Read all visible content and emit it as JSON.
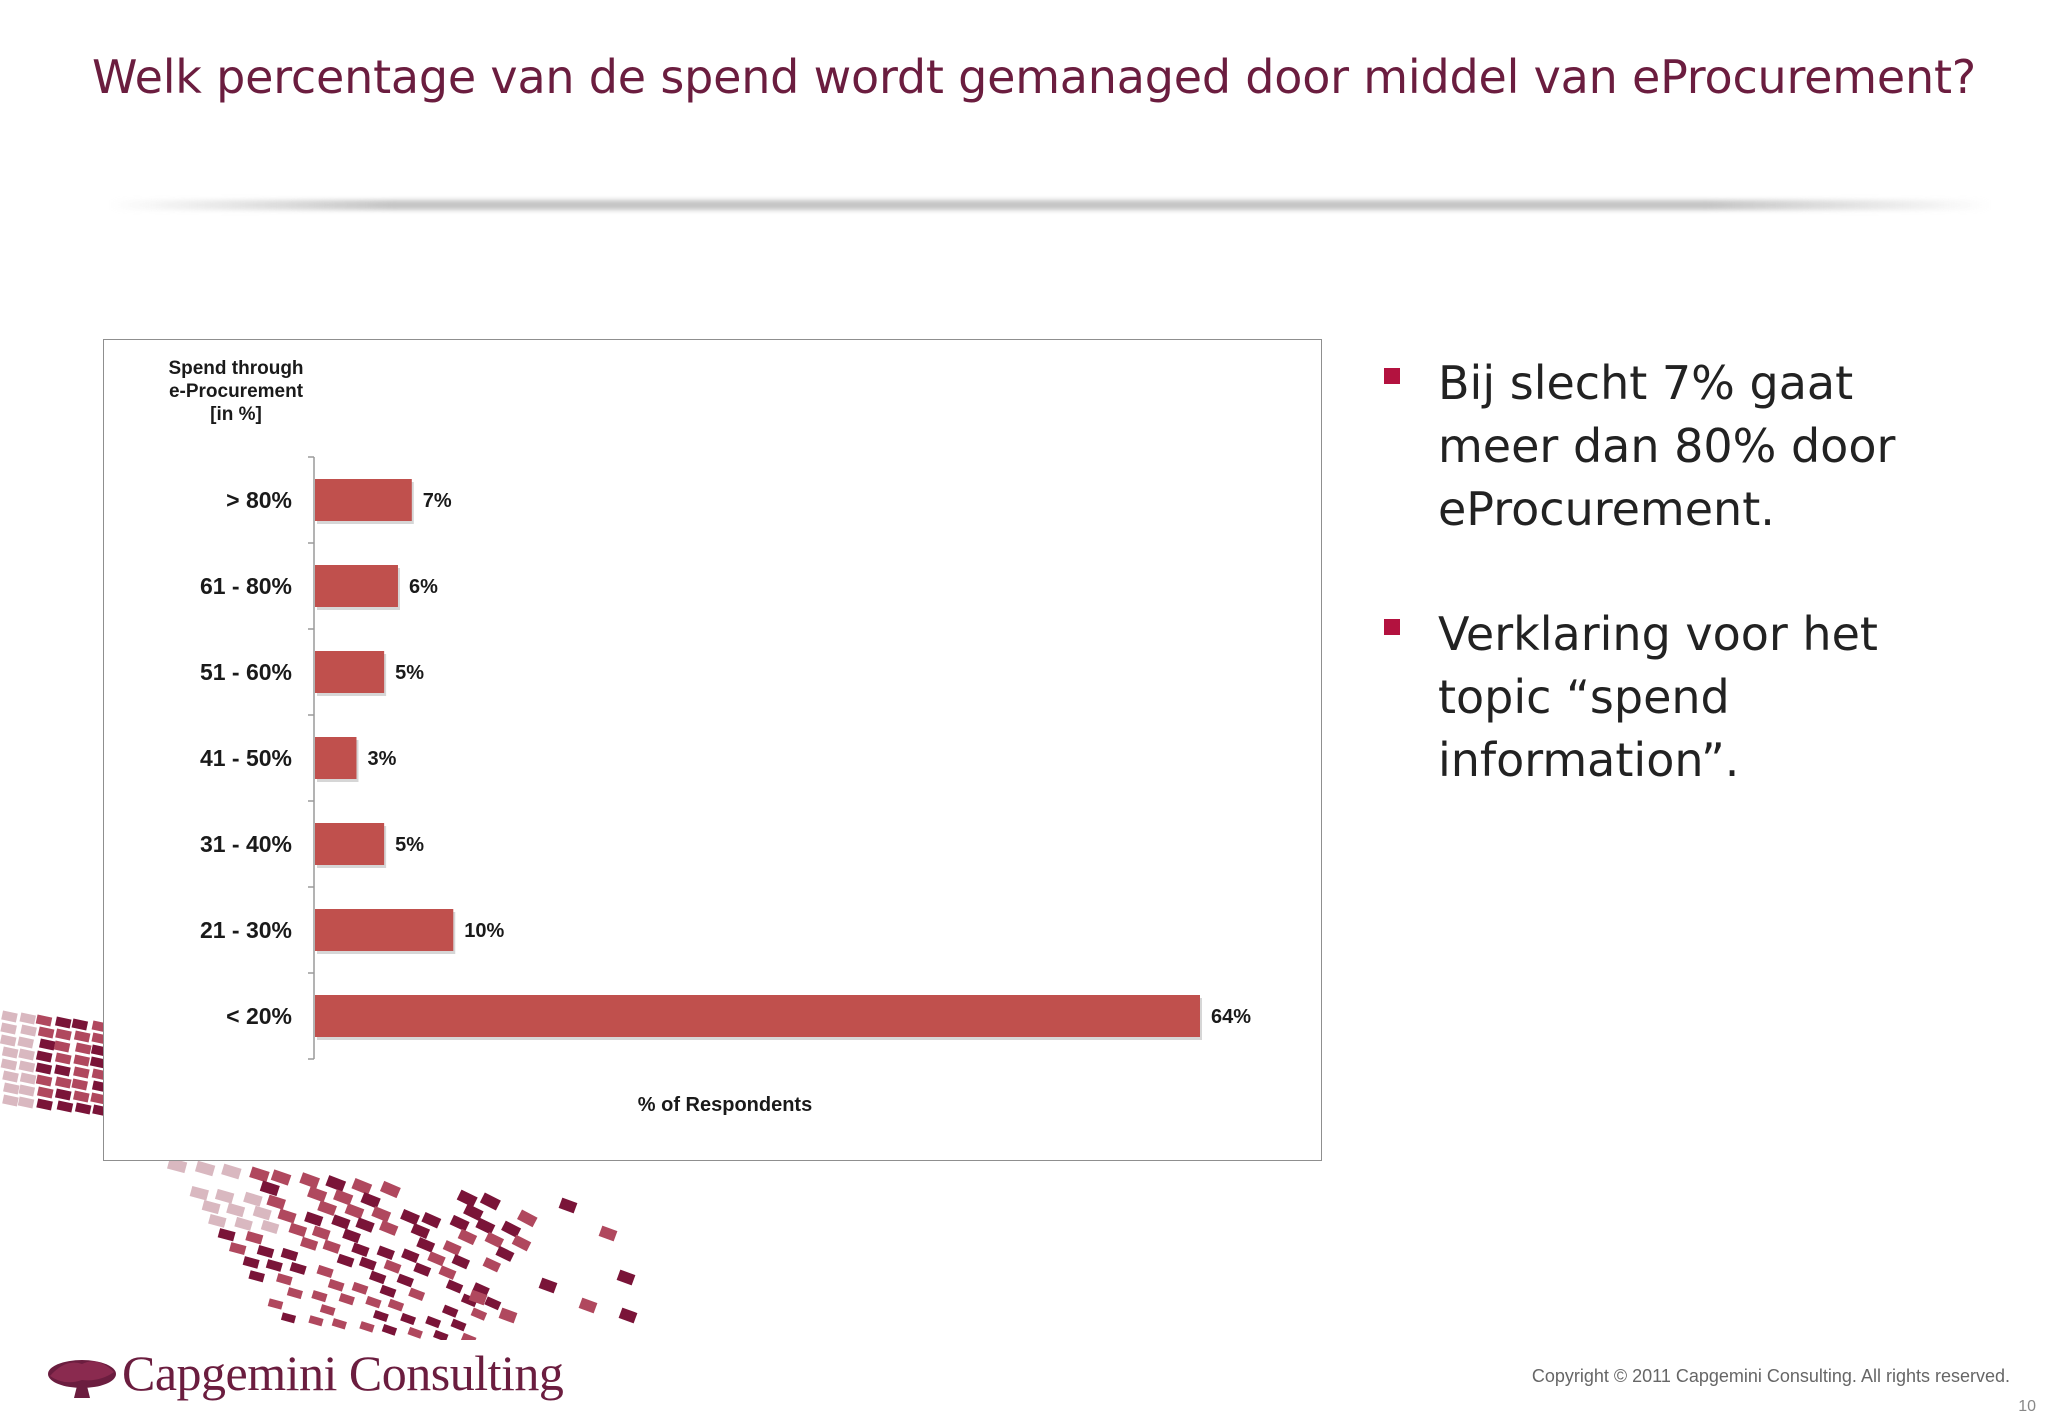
{
  "slide": {
    "title": "Welk percentage van de spend wordt gemanaged door middel van eProcurement?",
    "copyright": "Copyright © 2011 Capgemini Consulting. All rights reserved.",
    "page_number": "10",
    "logo_text": "Capgemini Consulting"
  },
  "bullets": [
    "Bij slecht 7% gaat meer dan 80% door eProcurement.",
    "Verklaring voor het topic  “spend information”."
  ],
  "colors": {
    "title": "#6b1d3f",
    "bar": "#c0504d",
    "bullet": "#b3123f",
    "decor_dark": "#7a1438",
    "decor_mid": "#b0485e",
    "decor_light": "#d9b8c0"
  },
  "icons": {
    "logo": "spade-logo-icon",
    "bullet": "square-bullet-icon"
  },
  "chart_data": {
    "type": "bar",
    "orientation": "horizontal",
    "title": "Spend through e-Procurement [in %]",
    "title_lines": [
      "Spend through",
      "e-Procurement",
      "[in %]"
    ],
    "xlabel": "% of Respondents",
    "categories": [
      "> 80%",
      "61 - 80%",
      "51 - 60%",
      "41 - 50%",
      "31 - 40%",
      "21 - 30%",
      "< 20%"
    ],
    "values": [
      7,
      6,
      5,
      3,
      5,
      10,
      64
    ],
    "value_labels": [
      "7%",
      "6%",
      "5%",
      "3%",
      "5%",
      "10%",
      "64%"
    ],
    "xlim": [
      0,
      64
    ],
    "grid": false,
    "legend": "none"
  }
}
